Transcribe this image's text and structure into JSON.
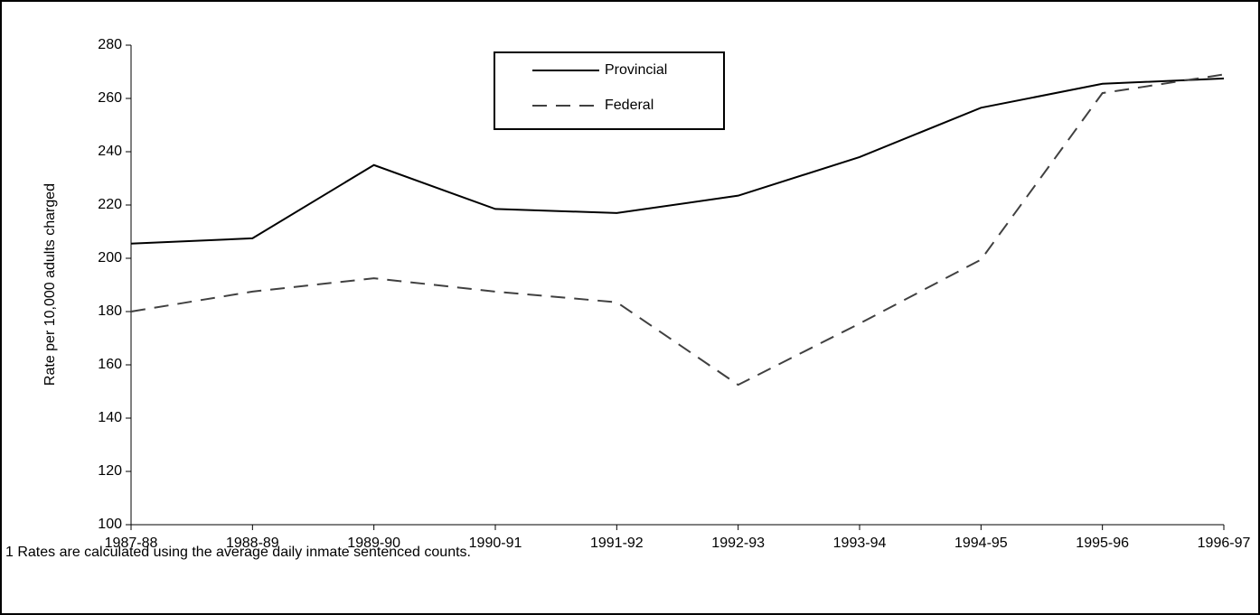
{
  "chart_data": {
    "type": "line",
    "y_label": "Rate per 10,000 adults charged",
    "footnote": "1  Rates are calculated using the average daily inmate sentenced counts.",
    "categories": [
      "1987-88",
      "1988-89",
      "1989-90",
      "1990-91",
      "1991-92",
      "1992-93",
      "1993-94",
      "1994-95",
      "1995-96",
      "1996-97"
    ],
    "series": [
      {
        "name": "Provincial",
        "color": "#000000",
        "dash": "none",
        "values": [
          205.5,
          207.5,
          235,
          218.5,
          217,
          223.5,
          238,
          256.5,
          265.5,
          267.5
        ]
      },
      {
        "name": "Federal",
        "color": "#404040",
        "dash": "16 10",
        "values": [
          180,
          187.5,
          192.5,
          187.5,
          183.5,
          152.5,
          175.5,
          199.5,
          262,
          269
        ]
      }
    ],
    "ylim": [
      100,
      280
    ],
    "yticks": [
      100,
      120,
      140,
      160,
      180,
      200,
      220,
      240,
      260,
      280
    ],
    "grid": false,
    "legend": "top-center"
  }
}
